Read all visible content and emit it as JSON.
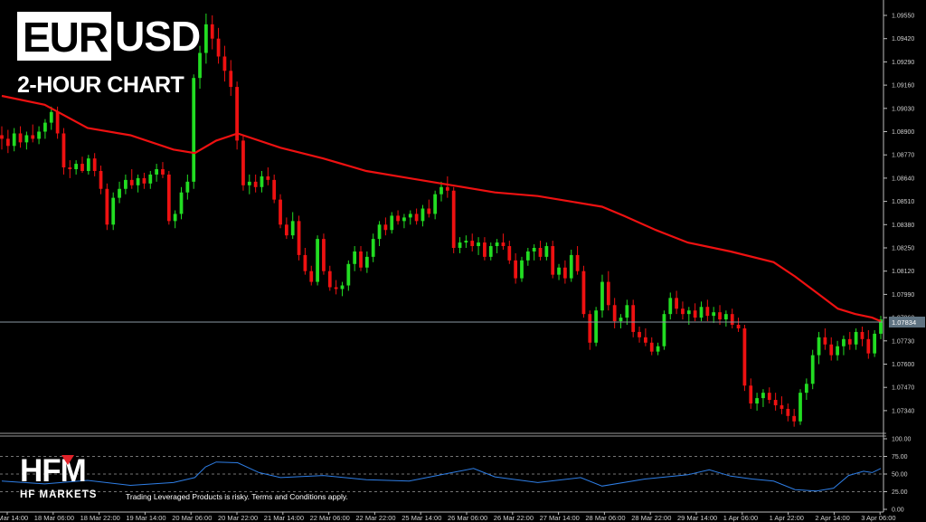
{
  "header": {
    "pair_boxed": "EUR",
    "pair_rest": "USD",
    "subtitle": "2-HOUR CHART"
  },
  "footer": {
    "brand_mark": "HFM",
    "brand_name": "HF MARKETS",
    "disclaimer": "Trading Leveraged Products is risky. Terms and Conditions apply."
  },
  "colors": {
    "background": "#000000",
    "bull": "#22dd22",
    "bear": "#ee1111",
    "moving_average": "#ee1111",
    "oscillator": "#2e7ee6",
    "price_line": "#8a97a3",
    "current_price_box": "#5f7382"
  },
  "chart_data": {
    "type": "candlestick",
    "y_ticks": [
      "1.09550",
      "1.09420",
      "1.09290",
      "1.09160",
      "1.09030",
      "1.08900",
      "1.08770",
      "1.08640",
      "1.08510",
      "1.08380",
      "1.08250",
      "1.08120",
      "1.07990",
      "1.07860",
      "1.07730",
      "1.07600",
      "1.07470",
      "1.07340"
    ],
    "ylim": [
      1.0725,
      1.0963
    ],
    "current_price": "1.07834",
    "current_price_value": 1.07834,
    "x_labels": [
      "15 Mar 14:00",
      "18 Mar 06:00",
      "18 Mar 22:00",
      "19 Mar 14:00",
      "20 Mar 06:00",
      "20 Mar 22:00",
      "21 Mar 14:00",
      "22 Mar 06:00",
      "22 Mar 22:00",
      "25 Mar 14:00",
      "26 Mar 06:00",
      "26 Mar 22:00",
      "27 Mar 14:00",
      "28 Mar 06:00",
      "28 Mar 22:00",
      "29 Mar 14:00",
      "1 Apr 06:00",
      "1 Apr 22:00",
      "2 Apr 14:00",
      "3 Apr 06:00"
    ],
    "candles": [
      [
        1.0888,
        1.0893,
        1.088,
        1.0886
      ],
      [
        1.0886,
        1.0891,
        1.0878,
        1.0882
      ],
      [
        1.0882,
        1.0892,
        1.0879,
        1.0889
      ],
      [
        1.0889,
        1.0893,
        1.0881,
        1.0884
      ],
      [
        1.0884,
        1.089,
        1.088,
        1.0888
      ],
      [
        1.0888,
        1.0894,
        1.0884,
        1.0886
      ],
      [
        1.0886,
        1.0893,
        1.0883,
        1.089
      ],
      [
        1.089,
        1.0897,
        1.0886,
        1.0895
      ],
      [
        1.0895,
        1.0904,
        1.0891,
        1.0901
      ],
      [
        1.0901,
        1.0904,
        1.0886,
        1.0889
      ],
      [
        1.0889,
        1.0892,
        1.0866,
        1.087
      ],
      [
        1.087,
        1.0874,
        1.0864,
        1.0869
      ],
      [
        1.0869,
        1.0874,
        1.0866,
        1.0872
      ],
      [
        1.0872,
        1.0876,
        1.0867,
        1.0868
      ],
      [
        1.0868,
        1.0877,
        1.0866,
        1.0875
      ],
      [
        1.0875,
        1.0878,
        1.0865,
        1.0868
      ],
      [
        1.0868,
        1.0871,
        1.0855,
        1.0858
      ],
      [
        1.0858,
        1.0861,
        1.0835,
        1.0838
      ],
      [
        1.0838,
        1.0856,
        1.0835,
        1.0853
      ],
      [
        1.0853,
        1.0862,
        1.085,
        1.0858
      ],
      [
        1.0858,
        1.0866,
        1.0855,
        1.0863
      ],
      [
        1.0863,
        1.0869,
        1.0858,
        1.086
      ],
      [
        1.086,
        1.0866,
        1.0856,
        1.0864
      ],
      [
        1.0864,
        1.0867,
        1.0858,
        1.0861
      ],
      [
        1.0861,
        1.0868,
        1.0858,
        1.0866
      ],
      [
        1.0866,
        1.0872,
        1.0862,
        1.0869
      ],
      [
        1.0869,
        1.0873,
        1.0864,
        1.0866
      ],
      [
        1.0866,
        1.0868,
        1.0838,
        1.084
      ],
      [
        1.084,
        1.0846,
        1.0836,
        1.0844
      ],
      [
        1.0844,
        1.0859,
        1.0841,
        1.0856
      ],
      [
        1.0856,
        1.0866,
        1.0852,
        1.0862
      ],
      [
        1.0862,
        1.0922,
        1.0858,
        1.092
      ],
      [
        1.092,
        1.0938,
        1.0914,
        1.0934
      ],
      [
        1.0934,
        1.0956,
        1.0928,
        1.095
      ],
      [
        1.095,
        1.0955,
        1.0936,
        1.0942
      ],
      [
        1.0942,
        1.0948,
        1.0928,
        1.0932
      ],
      [
        1.0932,
        1.0938,
        1.0918,
        1.0924
      ],
      [
        1.0924,
        1.093,
        1.091,
        1.0915
      ],
      [
        1.0915,
        1.0918,
        1.088,
        1.0885
      ],
      [
        1.0885,
        1.0888,
        1.0857,
        1.086
      ],
      [
        1.086,
        1.0866,
        1.0855,
        1.0862
      ],
      [
        1.0862,
        1.0866,
        1.0856,
        1.0859
      ],
      [
        1.0859,
        1.0868,
        1.0856,
        1.0865
      ],
      [
        1.0865,
        1.087,
        1.086,
        1.0863
      ],
      [
        1.0863,
        1.0866,
        1.085,
        1.0852
      ],
      [
        1.0852,
        1.0855,
        1.0836,
        1.0838
      ],
      [
        1.0838,
        1.0842,
        1.083,
        1.0832
      ],
      [
        1.0832,
        1.0845,
        1.083,
        1.084
      ],
      [
        1.084,
        1.0843,
        1.0818,
        1.0821
      ],
      [
        1.0821,
        1.0825,
        1.081,
        1.0812
      ],
      [
        1.0812,
        1.0815,
        1.0804,
        1.0806
      ],
      [
        1.0806,
        1.0832,
        1.0804,
        1.083
      ],
      [
        1.083,
        1.0833,
        1.081,
        1.0812
      ],
      [
        1.0812,
        1.0815,
        1.0801,
        1.0803
      ],
      [
        1.0803,
        1.0807,
        1.0799,
        1.0802
      ],
      [
        1.0802,
        1.0806,
        1.0798,
        1.0804
      ],
      [
        1.0804,
        1.0818,
        1.0801,
        1.0816
      ],
      [
        1.0816,
        1.0826,
        1.0812,
        1.0823
      ],
      [
        1.0823,
        1.0826,
        1.0812,
        1.0814
      ],
      [
        1.0814,
        1.0823,
        1.0811,
        1.082
      ],
      [
        1.082,
        1.0833,
        1.0817,
        1.083
      ],
      [
        1.083,
        1.084,
        1.0826,
        1.0838
      ],
      [
        1.0838,
        1.0842,
        1.0832,
        1.0835
      ],
      [
        1.0835,
        1.0845,
        1.0833,
        1.0843
      ],
      [
        1.0843,
        1.0846,
        1.0838,
        1.084
      ],
      [
        1.084,
        1.0844,
        1.0836,
        1.0842
      ],
      [
        1.0842,
        1.0846,
        1.0838,
        1.0844
      ],
      [
        1.0844,
        1.0847,
        1.0838,
        1.084
      ],
      [
        1.084,
        1.0849,
        1.0837,
        1.0847
      ],
      [
        1.0847,
        1.0852,
        1.0842,
        1.0844
      ],
      [
        1.0844,
        1.0857,
        1.0841,
        1.0855
      ],
      [
        1.0855,
        1.0862,
        1.0851,
        1.0859
      ],
      [
        1.0859,
        1.0865,
        1.0853,
        1.0857
      ],
      [
        1.0857,
        1.0859,
        1.0822,
        1.0825
      ],
      [
        1.0825,
        1.0831,
        1.0822,
        1.0828
      ],
      [
        1.0828,
        1.0832,
        1.0825,
        1.0829
      ],
      [
        1.0829,
        1.0833,
        1.0823,
        1.0826
      ],
      [
        1.0826,
        1.0831,
        1.0821,
        1.0828
      ],
      [
        1.0828,
        1.0831,
        1.0818,
        1.082
      ],
      [
        1.082,
        1.0828,
        1.0818,
        1.0826
      ],
      [
        1.0826,
        1.083,
        1.0822,
        1.0828
      ],
      [
        1.0828,
        1.0833,
        1.0824,
        1.0826
      ],
      [
        1.0826,
        1.0829,
        1.0816,
        1.0818
      ],
      [
        1.0818,
        1.0822,
        1.0805,
        1.0808
      ],
      [
        1.0808,
        1.082,
        1.0806,
        1.0818
      ],
      [
        1.0818,
        1.0825,
        1.0815,
        1.0823
      ],
      [
        1.0823,
        1.0827,
        1.0818,
        1.0825
      ],
      [
        1.0825,
        1.0829,
        1.0818,
        1.082
      ],
      [
        1.082,
        1.0828,
        1.0818,
        1.0826
      ],
      [
        1.0826,
        1.0829,
        1.0808,
        1.081
      ],
      [
        1.081,
        1.0816,
        1.0807,
        1.0814
      ],
      [
        1.0814,
        1.0818,
        1.0805,
        1.0808
      ],
      [
        1.0808,
        1.0824,
        1.0806,
        1.0821
      ],
      [
        1.0821,
        1.0826,
        1.081,
        1.0812
      ],
      [
        1.0812,
        1.0815,
        1.0786,
        1.0788
      ],
      [
        1.0788,
        1.079,
        1.0768,
        1.0772
      ],
      [
        1.0772,
        1.0792,
        1.077,
        1.079
      ],
      [
        1.079,
        1.081,
        1.0786,
        1.0806
      ],
      [
        1.0806,
        1.0812,
        1.079,
        1.0793
      ],
      [
        1.0793,
        1.0797,
        1.078,
        1.0784
      ],
      [
        1.0784,
        1.0788,
        1.078,
        1.0786
      ],
      [
        1.0786,
        1.0796,
        1.0782,
        1.0793
      ],
      [
        1.0793,
        1.0796,
        1.0775,
        1.0778
      ],
      [
        1.0778,
        1.0781,
        1.0772,
        1.0775
      ],
      [
        1.0775,
        1.078,
        1.077,
        1.0772
      ],
      [
        1.0772,
        1.0775,
        1.0765,
        1.0767
      ],
      [
        1.0767,
        1.0772,
        1.0765,
        1.077
      ],
      [
        1.077,
        1.079,
        1.0768,
        1.0788
      ],
      [
        1.0788,
        1.08,
        1.0785,
        1.0797
      ],
      [
        1.0797,
        1.0801,
        1.0788,
        1.0791
      ],
      [
        1.0791,
        1.0795,
        1.0785,
        1.0788
      ],
      [
        1.0788,
        1.0792,
        1.0782,
        1.079
      ],
      [
        1.079,
        1.0794,
        1.0784,
        1.0786
      ],
      [
        1.0786,
        1.0795,
        1.0784,
        1.0792
      ],
      [
        1.0792,
        1.0796,
        1.0784,
        1.0787
      ],
      [
        1.0787,
        1.0792,
        1.0783,
        1.0789
      ],
      [
        1.0789,
        1.0793,
        1.0782,
        1.0785
      ],
      [
        1.0785,
        1.079,
        1.0781,
        1.0788
      ],
      [
        1.0788,
        1.0791,
        1.078,
        1.0782
      ],
      [
        1.0782,
        1.0786,
        1.0778,
        1.078
      ],
      [
        1.078,
        1.0782,
        1.0745,
        1.0748
      ],
      [
        1.0748,
        1.0752,
        1.0735,
        1.0738
      ],
      [
        1.0738,
        1.0744,
        1.0734,
        1.0741
      ],
      [
        1.0741,
        1.0746,
        1.0736,
        1.0744
      ],
      [
        1.0744,
        1.0747,
        1.0738,
        1.074
      ],
      [
        1.074,
        1.0744,
        1.0734,
        1.0737
      ],
      [
        1.0737,
        1.0742,
        1.0732,
        1.0735
      ],
      [
        1.0735,
        1.0738,
        1.0728,
        1.0731
      ],
      [
        1.0731,
        1.0735,
        1.0725,
        1.0728
      ],
      [
        1.0728,
        1.0746,
        1.0726,
        1.0744
      ],
      [
        1.0744,
        1.0752,
        1.074,
        1.0749
      ],
      [
        1.0749,
        1.0768,
        1.0746,
        1.0765
      ],
      [
        1.0765,
        1.0778,
        1.076,
        1.0775
      ],
      [
        1.0775,
        1.078,
        1.0768,
        1.0771
      ],
      [
        1.0771,
        1.0775,
        1.0762,
        1.0765
      ],
      [
        1.0765,
        1.0773,
        1.0762,
        1.077
      ],
      [
        1.077,
        1.0776,
        1.0765,
        1.0774
      ],
      [
        1.0774,
        1.0778,
        1.0768,
        1.0771
      ],
      [
        1.0771,
        1.078,
        1.0768,
        1.0778
      ],
      [
        1.0778,
        1.0781,
        1.077,
        1.0774
      ],
      [
        1.0774,
        1.0779,
        1.0763,
        1.0766
      ],
      [
        1.0766,
        1.0779,
        1.0764,
        1.0777
      ],
      [
        1.0777,
        1.0787,
        1.0774,
        1.0785
      ]
    ],
    "moving_average": [
      [
        0,
        1.091
      ],
      [
        20,
        1.0905
      ],
      [
        40,
        1.0892
      ],
      [
        60,
        1.0888
      ],
      [
        80,
        1.088
      ],
      [
        90,
        1.0878
      ],
      [
        100,
        1.0885
      ],
      [
        110,
        1.0889
      ],
      [
        130,
        1.0881
      ],
      [
        150,
        1.0875
      ],
      [
        170,
        1.0868
      ],
      [
        190,
        1.0864
      ],
      [
        210,
        1.086
      ],
      [
        230,
        1.0856
      ],
      [
        250,
        1.0854
      ],
      [
        265,
        1.0851
      ],
      [
        280,
        1.0848
      ],
      [
        290,
        1.0843
      ],
      [
        305,
        1.0835
      ],
      [
        320,
        1.0828
      ],
      [
        340,
        1.0823
      ],
      [
        360,
        1.0817
      ],
      [
        370,
        1.0809
      ],
      [
        380,
        1.08
      ],
      [
        390,
        1.0791
      ],
      [
        398,
        1.0788
      ],
      [
        406,
        1.0786
      ],
      [
        410,
        1.0784
      ]
    ],
    "oscillator": {
      "levels": [
        100,
        75,
        50,
        25,
        0
      ],
      "level_labels": [
        "100.00",
        "75.00",
        "50.00",
        "25.00",
        "0.00"
      ],
      "dashed_levels": [
        75,
        50,
        25
      ],
      "points": [
        [
          0,
          40
        ],
        [
          20,
          36
        ],
        [
          40,
          41
        ],
        [
          60,
          34
        ],
        [
          80,
          38
        ],
        [
          90,
          45
        ],
        [
          95,
          60
        ],
        [
          100,
          67
        ],
        [
          110,
          66
        ],
        [
          120,
          52
        ],
        [
          130,
          45
        ],
        [
          150,
          48
        ],
        [
          170,
          42
        ],
        [
          190,
          40
        ],
        [
          210,
          52
        ],
        [
          220,
          58
        ],
        [
          230,
          46
        ],
        [
          250,
          38
        ],
        [
          270,
          45
        ],
        [
          280,
          33
        ],
        [
          300,
          43
        ],
        [
          320,
          49
        ],
        [
          330,
          56
        ],
        [
          340,
          47
        ],
        [
          350,
          43
        ],
        [
          360,
          40
        ],
        [
          370,
          28
        ],
        [
          380,
          26
        ],
        [
          388,
          30
        ],
        [
          395,
          48
        ],
        [
          402,
          54
        ],
        [
          406,
          52
        ],
        [
          410,
          58
        ]
      ]
    }
  }
}
